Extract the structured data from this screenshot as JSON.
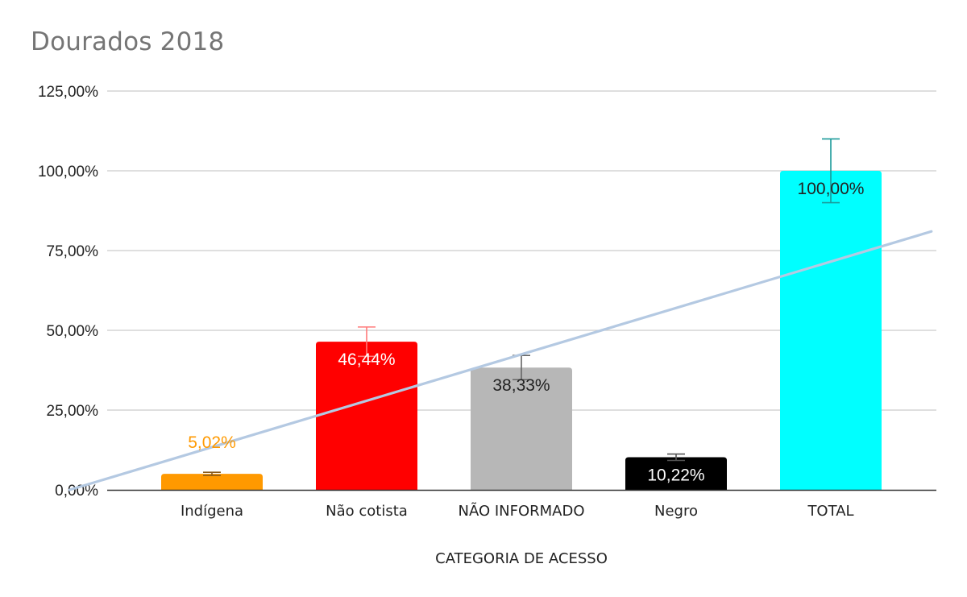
{
  "chart_data": {
    "type": "bar",
    "title": "Dourados 2018",
    "xlabel": "CATEGORIA DE ACESSO",
    "ylabel": "",
    "ylim": [
      0,
      125
    ],
    "yticks": [
      0,
      25,
      50,
      75,
      100,
      125
    ],
    "ytick_labels": [
      "0,00%",
      "25,00%",
      "50,00%",
      "75,00%",
      "100,00%",
      "125,00%"
    ],
    "categories": [
      "Indígena",
      "Não cotista",
      "NÃO INFORMADO",
      "Negro",
      "TOTAL"
    ],
    "values": [
      5.02,
      46.44,
      38.33,
      10.22,
      100.0
    ],
    "data_labels": [
      "5,02%",
      "46,44%",
      "38,33%",
      "10,22%",
      "100,00%"
    ],
    "error_bars": [
      0.5,
      4.6,
      3.8,
      1.0,
      10.0
    ],
    "bar_colors": [
      "#ff9900",
      "#ff0000",
      "#b7b7b7",
      "#000000",
      "#00ffff"
    ],
    "label_colors": [
      "#ff9900",
      "#ffffff",
      "#222222",
      "#ffffff",
      "#222222"
    ],
    "label_positions": [
      "above",
      "inside",
      "inside",
      "inside",
      "inside"
    ],
    "error_bar_colors": [
      "#8a5a1a",
      "#ff7a7a",
      "#666666",
      "#555555",
      "#1a9a9a"
    ],
    "trendline": {
      "type": "linear",
      "color": "#b4c9e2",
      "x_range": [
        0.08,
        5.65
      ],
      "start_value": 0,
      "end_value": 81
    },
    "grid": true,
    "legend": "none"
  }
}
